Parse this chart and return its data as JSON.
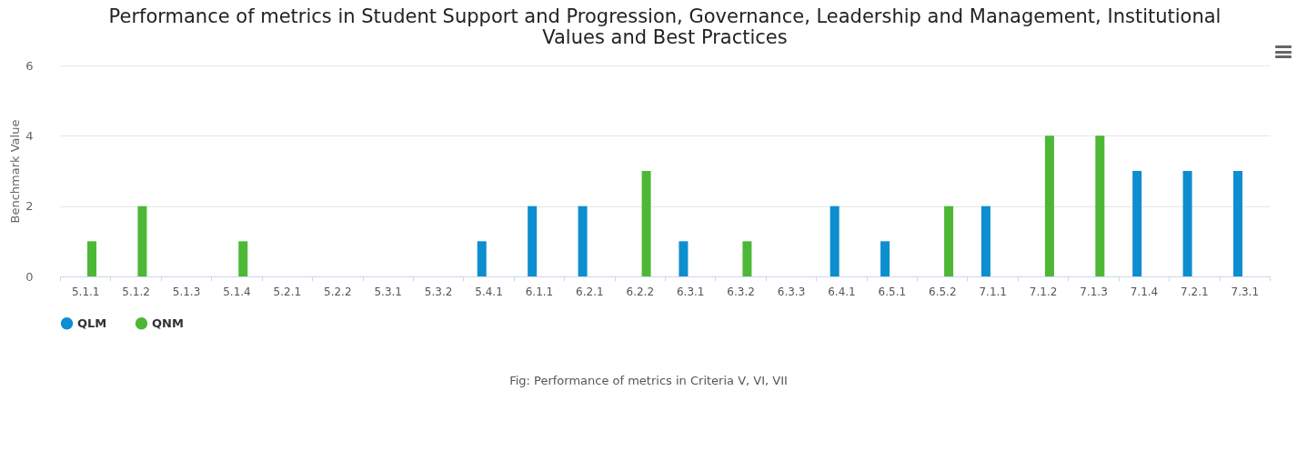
{
  "chart_data": {
    "type": "bar",
    "title": "Performance of metrics in Student Support and Progression, Governance, Leadership and Management, Institutional Values and Best Practices",
    "ylabel": "Benchmark Value",
    "categories": [
      "5.1.1",
      "5.1.2",
      "5.1.3",
      "5.1.4",
      "5.2.1",
      "5.2.2",
      "5.3.1",
      "5.3.2",
      "5.4.1",
      "6.1.1",
      "6.2.1",
      "6.2.2",
      "6.3.1",
      "6.3.2",
      "6.3.3",
      "6.4.1",
      "6.5.1",
      "6.5.2",
      "7.1.1",
      "7.1.2",
      "7.1.3",
      "7.1.4",
      "7.2.1",
      "7.3.1"
    ],
    "series": [
      {
        "name": "QLM",
        "color": "#0d8ecf",
        "values": [
          null,
          null,
          null,
          null,
          null,
          null,
          null,
          null,
          1,
          2,
          2,
          null,
          1,
          null,
          null,
          2,
          1,
          null,
          2,
          null,
          null,
          3,
          3,
          3
        ]
      },
      {
        "name": "QNM",
        "color": "#4cb836",
        "values": [
          1,
          2,
          null,
          1,
          null,
          null,
          null,
          null,
          null,
          null,
          null,
          3,
          null,
          1,
          null,
          null,
          null,
          2,
          null,
          4,
          4,
          null,
          null,
          null
        ]
      }
    ],
    "ylim": [
      0,
      6
    ],
    "yticks": [
      0,
      2,
      4,
      6
    ],
    "grid": "y",
    "legend": "bottom",
    "annotations": [
      "Fig: Performance of metrics in Criteria V, VI, VII"
    ]
  }
}
